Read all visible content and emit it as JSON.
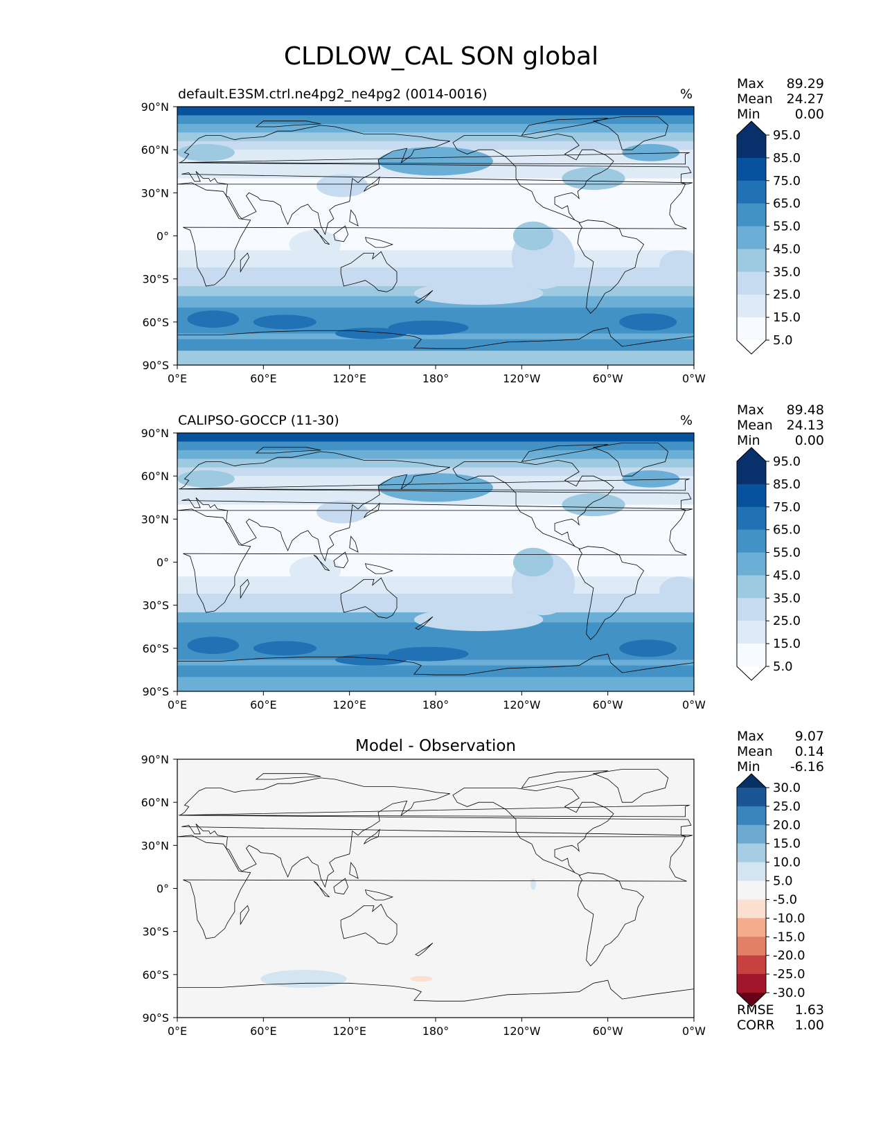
{
  "page_title": "CLDLOW_CAL SON global",
  "chart_data": [
    {
      "type": "heatmap",
      "kind": "contour-map",
      "title_left": "default.E3SM.ctrl.ne4pg2_ne4pg2 (0014-0016)",
      "title_center": "",
      "units": "%",
      "stats": [
        {
          "label": "Max",
          "value": "89.29"
        },
        {
          "label": "Mean",
          "value": "24.27"
        },
        {
          "label": "Min",
          "value": "0.00"
        }
      ],
      "colorbar": {
        "ticks": [
          "95.0",
          "85.0",
          "75.0",
          "65.0",
          "55.0",
          "45.0",
          "35.0",
          "25.0",
          "15.0",
          "5.0"
        ],
        "colors": [
          "#08306b",
          "#08519c",
          "#2171b5",
          "#4292c6",
          "#6baed6",
          "#9ecae1",
          "#c6dbef",
          "#deebf7",
          "#f7fbff"
        ],
        "extend_max": "#08306b",
        "extend_min": "#ffffff"
      },
      "field": "model",
      "xticks": [
        "0°E",
        "60°E",
        "120°E",
        "180°",
        "120°W",
        "60°W",
        "0°W"
      ],
      "yticks": [
        "90°N",
        "60°N",
        "30°N",
        "0°",
        "30°S",
        "60°S",
        "90°S"
      ],
      "xlim": [
        0,
        360
      ],
      "ylim": [
        -90,
        90
      ]
    },
    {
      "type": "heatmap",
      "kind": "contour-map",
      "title_left": "CALIPSO-GOCCP (11-30)",
      "title_center": "",
      "units": "%",
      "stats": [
        {
          "label": "Max",
          "value": "89.48"
        },
        {
          "label": "Mean",
          "value": "24.13"
        },
        {
          "label": "Min",
          "value": "0.00"
        }
      ],
      "colorbar": {
        "ticks": [
          "95.0",
          "85.0",
          "75.0",
          "65.0",
          "55.0",
          "45.0",
          "35.0",
          "25.0",
          "15.0",
          "5.0"
        ],
        "colors": [
          "#08306b",
          "#08519c",
          "#2171b5",
          "#4292c6",
          "#6baed6",
          "#9ecae1",
          "#c6dbef",
          "#deebf7",
          "#f7fbff"
        ],
        "extend_max": "#08306b",
        "extend_min": "#ffffff"
      },
      "field": "obs",
      "xticks": [
        "0°E",
        "60°E",
        "120°E",
        "180°",
        "120°W",
        "60°W",
        "0°W"
      ],
      "yticks": [
        "90°N",
        "60°N",
        "30°N",
        "0°",
        "30°S",
        "60°S",
        "90°S"
      ],
      "xlim": [
        0,
        360
      ],
      "ylim": [
        -90,
        90
      ]
    },
    {
      "type": "heatmap",
      "kind": "contour-map",
      "title_left": "",
      "title_center": "Model - Observation",
      "units": "",
      "stats": [
        {
          "label": "Max",
          "value": "9.07"
        },
        {
          "label": "Mean",
          "value": "0.14"
        },
        {
          "label": "Min",
          "value": "-6.16"
        }
      ],
      "bottom_stats": [
        {
          "label": "RMSE",
          "value": "1.63"
        },
        {
          "label": "CORR",
          "value": "1.00"
        }
      ],
      "colorbar": {
        "ticks": [
          "30.0",
          "25.0",
          "20.0",
          "15.0",
          "10.0",
          "5.0",
          "-5.0",
          "-10.0",
          "-15.0",
          "-20.0",
          "-25.0",
          "-30.0"
        ],
        "colors": [
          "#1b5596",
          "#3a84bd",
          "#6caad2",
          "#a6cde3",
          "#d3e5f0",
          "#f5f5f5",
          "#fbdfd0",
          "#f4ad8c",
          "#e27f67",
          "#c6413f",
          "#a2152a"
        ],
        "extend_max": "#073064",
        "extend_min": "#670119"
      },
      "field": "diff",
      "xticks": [
        "0°E",
        "60°E",
        "120°E",
        "180°",
        "120°W",
        "60°W",
        "0°W"
      ],
      "yticks": [
        "90°N",
        "60°N",
        "30°N",
        "0°",
        "30°S",
        "60°S",
        "90°S"
      ],
      "xlim": [
        0,
        360
      ],
      "ylim": [
        -90,
        90
      ]
    }
  ]
}
